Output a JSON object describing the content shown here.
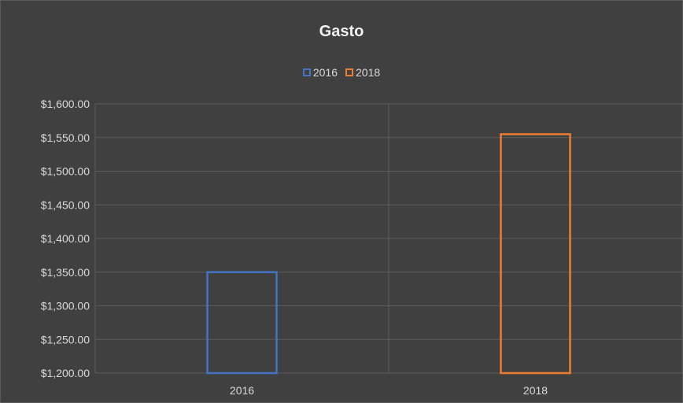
{
  "chart_data": {
    "type": "bar",
    "title": "Gasto",
    "xlabel": "",
    "ylabel": "",
    "categories": [
      "2016",
      "2018"
    ],
    "series": [
      {
        "name": "2016",
        "color": "#4472c4",
        "values": [
          1350,
          null
        ]
      },
      {
        "name": "2018",
        "color": "#ed7d31",
        "values": [
          null,
          1555
        ]
      }
    ],
    "ylim": [
      1200,
      1600
    ],
    "yticks": [
      1200,
      1250,
      1300,
      1350,
      1400,
      1450,
      1500,
      1550,
      1600
    ],
    "ytick_labels": [
      "$1,200.00",
      "$1,250.00",
      "$1,300.00",
      "$1,350.00",
      "$1,400.00",
      "$1,450.00",
      "$1,500.00",
      "$1,550.00",
      "$1,600.00"
    ],
    "bar_style": "outline",
    "grid": true,
    "legend_position": "top"
  }
}
